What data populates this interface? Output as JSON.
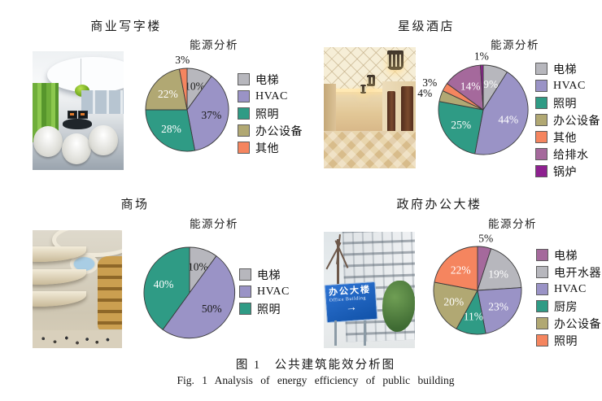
{
  "figure": {
    "caption_zh": "图 1　公共建筑能效分析图",
    "caption_en": "Fig. 1  Analysis of energy efficiency of public building"
  },
  "palette": {
    "slice_gray": "#b7b7bd",
    "slice_purple": "#9a93c6",
    "slice_teal": "#2f9b85",
    "slice_khaki": "#b1a873",
    "slice_salmon": "#f5855f",
    "slice_mauve": "#a5699c",
    "slice_magenta": "#8e2190",
    "slice_outline": "#3a3a3a"
  },
  "chart_data": [
    {
      "type": "pie",
      "panel_title": "商业写字楼",
      "title": "能源分析",
      "categories": [
        "电梯",
        "HVAC",
        "照明",
        "办公设备",
        "其他"
      ],
      "values": [
        10,
        37,
        28,
        22,
        3
      ],
      "colors": [
        "#b7b7bd",
        "#9a93c6",
        "#2f9b85",
        "#b1a873",
        "#f5855f"
      ],
      "label_colors": [
        "#1a1a1a",
        "#1a1a1a",
        "#ffffff",
        "#ffffff",
        "#1a1a1a"
      ],
      "legend_position": "right",
      "start_angle_deg": 0,
      "direction": "clockwise"
    },
    {
      "type": "pie",
      "panel_title": "星级酒店",
      "title": "能源分析",
      "categories": [
        "电梯",
        "HVAC",
        "照明",
        "办公设备",
        "其他",
        "给排水",
        "锅炉"
      ],
      "values": [
        9,
        44,
        25,
        4,
        3,
        14,
        1
      ],
      "colors": [
        "#b7b7bd",
        "#9a93c6",
        "#2f9b85",
        "#b1a873",
        "#f5855f",
        "#a5699c",
        "#8e2190"
      ],
      "label_colors": [
        "#ffffff",
        "#ffffff",
        "#ffffff",
        "#1a1a1a",
        "#1a1a1a",
        "#ffffff",
        "#1a1a1a"
      ],
      "legend_position": "right",
      "start_angle_deg": 0,
      "direction": "clockwise"
    },
    {
      "type": "pie",
      "panel_title": "商场",
      "title": "能源分析",
      "categories": [
        "电梯",
        "HVAC",
        "照明"
      ],
      "values": [
        10,
        50,
        40
      ],
      "colors": [
        "#b7b7bd",
        "#9a93c6",
        "#2f9b85"
      ],
      "label_colors": [
        "#1a1a1a",
        "#1a1a1a",
        "#ffffff"
      ],
      "legend_position": "right",
      "start_angle_deg": 0,
      "direction": "clockwise"
    },
    {
      "type": "pie",
      "panel_title": "政府办公大楼",
      "title": "能源分析",
      "categories": [
        "电梯",
        "电开水器",
        "HVAC",
        "厨房",
        "办公设备",
        "照明"
      ],
      "values": [
        5,
        19,
        23,
        11,
        20,
        22
      ],
      "colors": [
        "#a5699c",
        "#b7b7bd",
        "#9a93c6",
        "#2f9b85",
        "#b1a873",
        "#f5855f"
      ],
      "label_colors": [
        "#1a1a1a",
        "#ffffff",
        "#ffffff",
        "#ffffff",
        "#ffffff",
        "#ffffff"
      ],
      "legend_position": "right",
      "start_angle_deg": 0,
      "direction": "clockwise"
    }
  ],
  "photos": {
    "government": {
      "sign_line1": "办公大楼",
      "sign_line2": "Office Building",
      "sign_arrow": "→"
    }
  }
}
